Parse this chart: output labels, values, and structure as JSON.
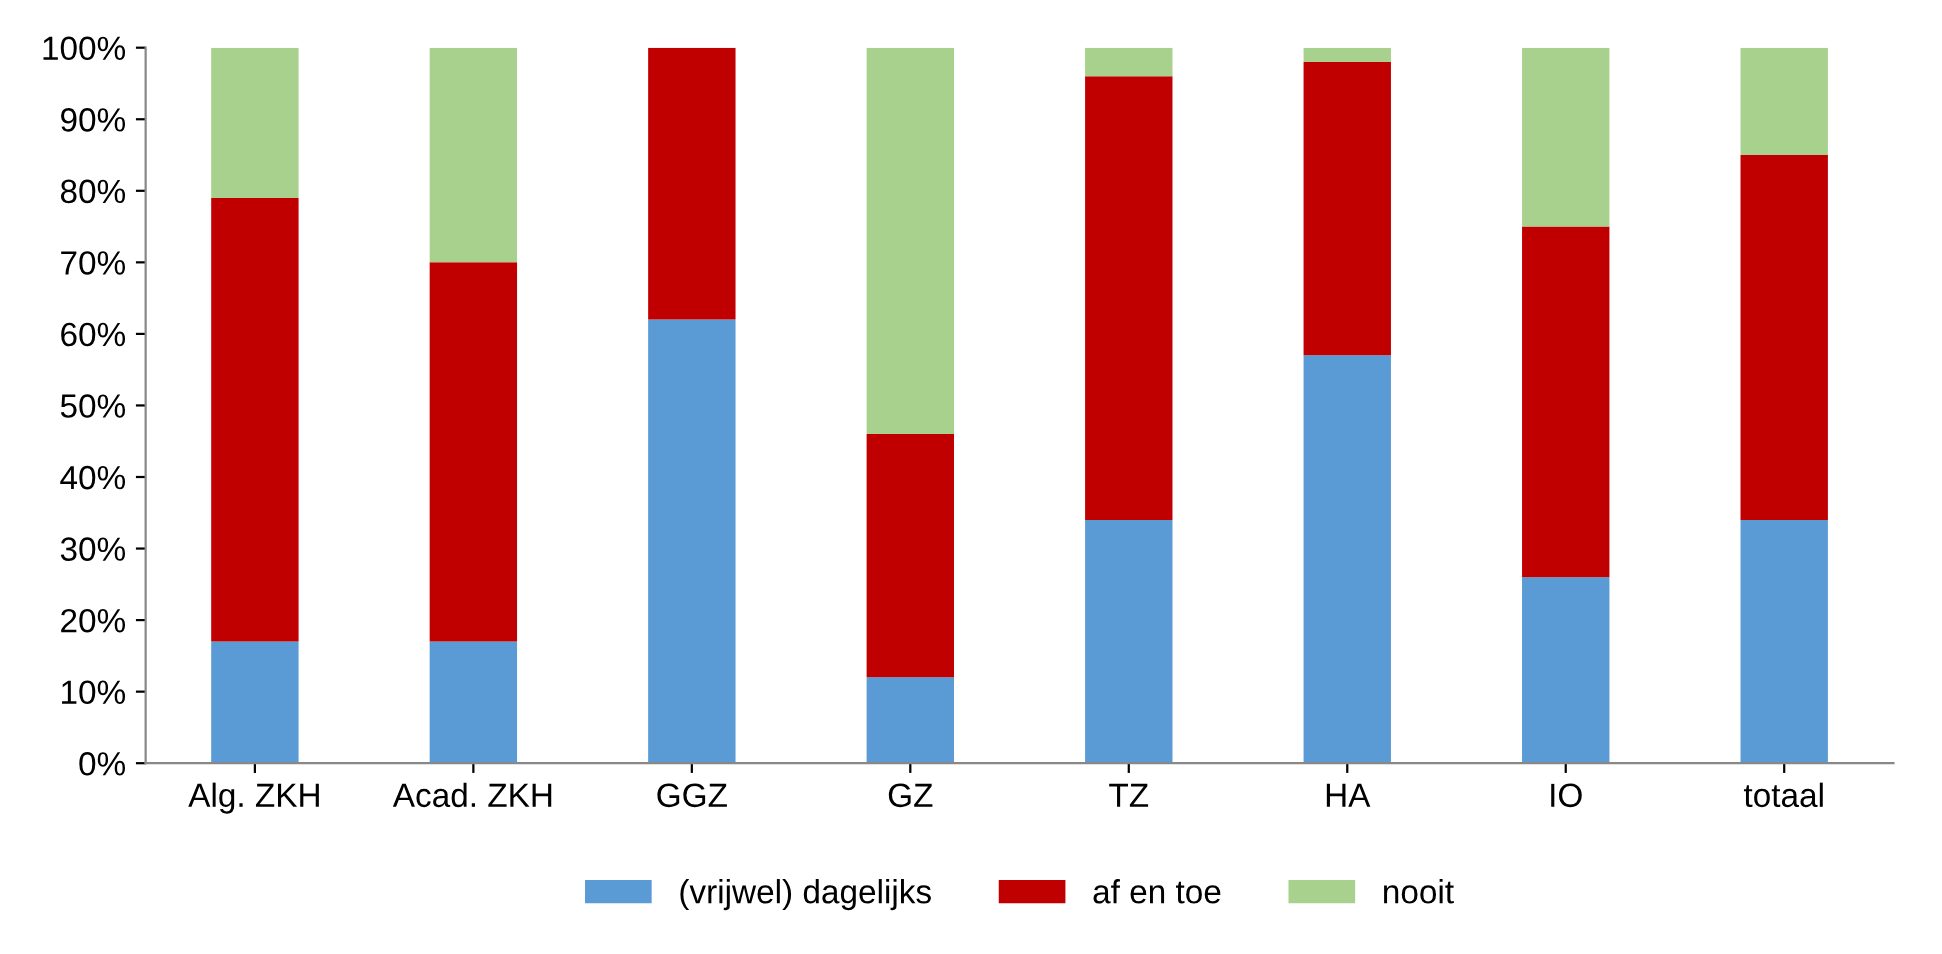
{
  "chart_data": {
    "type": "bar",
    "stacked": true,
    "categories": [
      "Alg. ZKH",
      "Acad. ZKH",
      "GGZ",
      "GZ",
      "TZ",
      "HA",
      "IO",
      "totaal"
    ],
    "series": [
      {
        "name": "(vrijwel) dagelijks",
        "color": "#5b9bd5",
        "values": [
          17,
          17,
          62,
          12,
          34,
          57,
          26,
          34
        ]
      },
      {
        "name": "af en toe",
        "color": "#c00000",
        "values": [
          62,
          53,
          38,
          34,
          62,
          41,
          49,
          51
        ]
      },
      {
        "name": "nooit",
        "color": "#a9d18e",
        "values": [
          21,
          30,
          0,
          54,
          4,
          2,
          25,
          15
        ]
      }
    ],
    "ylim": [
      0,
      100
    ],
    "yticks": [
      {
        "value": 0,
        "label": "0%"
      },
      {
        "value": 10,
        "label": "10%"
      },
      {
        "value": 20,
        "label": "20%"
      },
      {
        "value": 30,
        "label": "30%"
      },
      {
        "value": 40,
        "label": "40%"
      },
      {
        "value": 50,
        "label": "50%"
      },
      {
        "value": 60,
        "label": "60%"
      },
      {
        "value": 70,
        "label": "70%"
      },
      {
        "value": 80,
        "label": "80%"
      },
      {
        "value": 90,
        "label": "90%"
      },
      {
        "value": 100,
        "label": "100%"
      }
    ],
    "grid": false,
    "legend": "bottom"
  }
}
